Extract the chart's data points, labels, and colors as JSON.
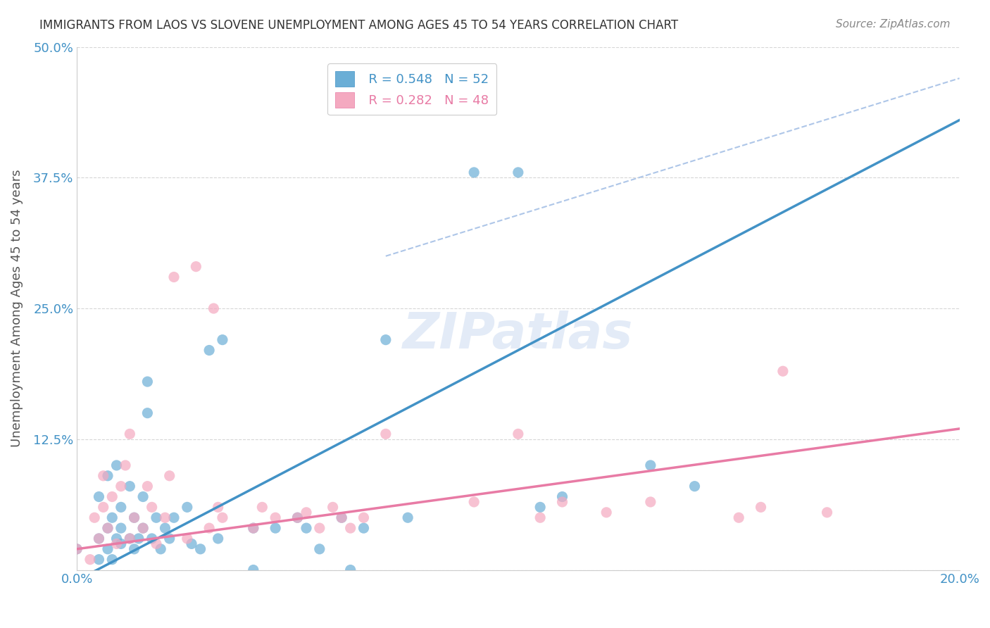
{
  "title": "IMMIGRANTS FROM LAOS VS SLOVENE UNEMPLOYMENT AMONG AGES 45 TO 54 YEARS CORRELATION CHART",
  "source": "Source: ZipAtlas.com",
  "xlabel": "",
  "ylabel": "Unemployment Among Ages 45 to 54 years",
  "xlim": [
    0.0,
    0.2
  ],
  "ylim": [
    0.0,
    0.5
  ],
  "xticks": [
    0.0,
    0.05,
    0.1,
    0.15,
    0.2
  ],
  "xticklabels": [
    "0.0%",
    "",
    "",
    "",
    "20.0%"
  ],
  "yticks": [
    0.0,
    0.125,
    0.25,
    0.375,
    0.5
  ],
  "yticklabels": [
    "",
    "12.5%",
    "25.0%",
    "37.5%",
    "50.0%"
  ],
  "blue_R": 0.548,
  "blue_N": 52,
  "pink_R": 0.282,
  "pink_N": 48,
  "blue_color": "#6baed6",
  "pink_color": "#f4a9c0",
  "blue_line_color": "#4292c6",
  "pink_line_color": "#e87ba5",
  "dashed_line_color": "#aec6e8",
  "watermark": "ZIPatlas",
  "blue_points_x": [
    0.0,
    0.005,
    0.005,
    0.005,
    0.007,
    0.007,
    0.007,
    0.008,
    0.008,
    0.009,
    0.009,
    0.01,
    0.01,
    0.01,
    0.012,
    0.012,
    0.013,
    0.013,
    0.014,
    0.015,
    0.015,
    0.016,
    0.016,
    0.017,
    0.018,
    0.019,
    0.02,
    0.021,
    0.022,
    0.025,
    0.026,
    0.028,
    0.03,
    0.032,
    0.033,
    0.04,
    0.04,
    0.045,
    0.05,
    0.052,
    0.055,
    0.06,
    0.062,
    0.065,
    0.07,
    0.075,
    0.09,
    0.1,
    0.105,
    0.11,
    0.13,
    0.14
  ],
  "blue_points_y": [
    0.02,
    0.01,
    0.03,
    0.07,
    0.02,
    0.04,
    0.09,
    0.01,
    0.05,
    0.03,
    0.1,
    0.025,
    0.04,
    0.06,
    0.03,
    0.08,
    0.02,
    0.05,
    0.03,
    0.04,
    0.07,
    0.15,
    0.18,
    0.03,
    0.05,
    0.02,
    0.04,
    0.03,
    0.05,
    0.06,
    0.025,
    0.02,
    0.21,
    0.03,
    0.22,
    0.04,
    0.0,
    0.04,
    0.05,
    0.04,
    0.02,
    0.05,
    0.0,
    0.04,
    0.22,
    0.05,
    0.38,
    0.38,
    0.06,
    0.07,
    0.1,
    0.08
  ],
  "pink_points_x": [
    0.0,
    0.003,
    0.004,
    0.005,
    0.006,
    0.006,
    0.007,
    0.008,
    0.009,
    0.01,
    0.011,
    0.012,
    0.012,
    0.013,
    0.015,
    0.016,
    0.017,
    0.018,
    0.02,
    0.021,
    0.022,
    0.025,
    0.027,
    0.03,
    0.031,
    0.032,
    0.033,
    0.04,
    0.042,
    0.045,
    0.05,
    0.052,
    0.055,
    0.058,
    0.06,
    0.062,
    0.065,
    0.07,
    0.09,
    0.1,
    0.105,
    0.11,
    0.12,
    0.13,
    0.15,
    0.155,
    0.16,
    0.17
  ],
  "pink_points_y": [
    0.02,
    0.01,
    0.05,
    0.03,
    0.06,
    0.09,
    0.04,
    0.07,
    0.025,
    0.08,
    0.1,
    0.03,
    0.13,
    0.05,
    0.04,
    0.08,
    0.06,
    0.025,
    0.05,
    0.09,
    0.28,
    0.03,
    0.29,
    0.04,
    0.25,
    0.06,
    0.05,
    0.04,
    0.06,
    0.05,
    0.05,
    0.055,
    0.04,
    0.06,
    0.05,
    0.04,
    0.05,
    0.13,
    0.065,
    0.13,
    0.05,
    0.065,
    0.055,
    0.065,
    0.05,
    0.06,
    0.19,
    0.055
  ],
  "blue_trend_x": [
    0.0,
    0.2
  ],
  "blue_trend_y": [
    -0.01,
    0.43
  ],
  "pink_trend_x": [
    0.0,
    0.2
  ],
  "pink_trend_y": [
    0.02,
    0.135
  ],
  "dashed_trend_x": [
    0.07,
    0.2
  ],
  "dashed_trend_y": [
    0.3,
    0.47
  ]
}
